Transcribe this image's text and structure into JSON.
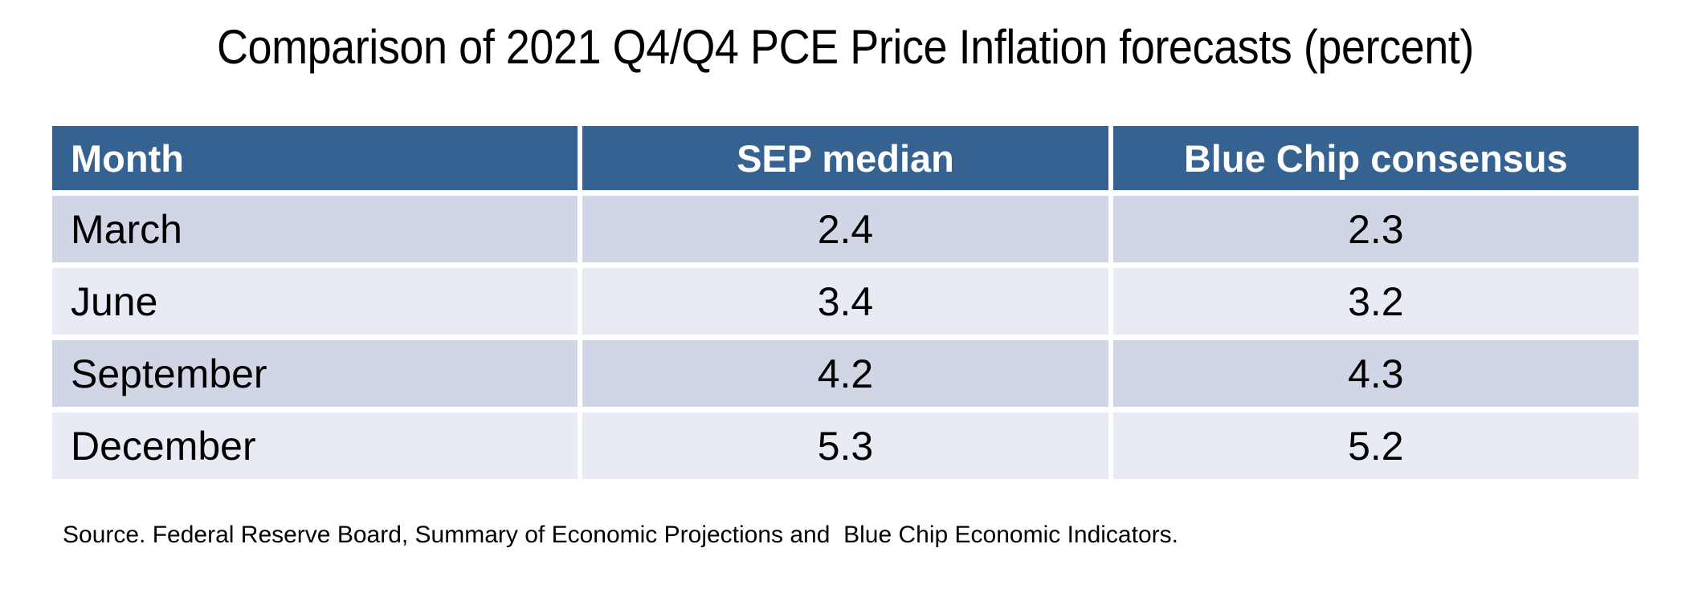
{
  "title": "Comparison of 2021 Q4/Q4 PCE Price Inflation forecasts (percent)",
  "table": {
    "header": {
      "month": "Month",
      "sep": "SEP median",
      "bluechip": "Blue Chip consensus"
    },
    "rows": [
      {
        "month": "March",
        "sep": "2.4",
        "bluechip": "2.3"
      },
      {
        "month": "June",
        "sep": "3.4",
        "bluechip": "3.2"
      },
      {
        "month": "September",
        "sep": "4.2",
        "bluechip": "4.3"
      },
      {
        "month": "December",
        "sep": "5.3",
        "bluechip": "5.2"
      }
    ]
  },
  "source": "Source. Federal Reserve Board, Summary of Economic Projections and  Blue Chip Economic Indicators.",
  "colors": {
    "header_bg": "#366291",
    "header_text": "#ffffff",
    "row_band_dark": "#d0d6e6",
    "row_band_light": "#e8ebf3",
    "body_text": "#000000",
    "background": "#ffffff"
  },
  "chart_data": {
    "type": "table",
    "title": "Comparison of 2021 Q4/Q4 PCE Price Inflation forecasts (percent)",
    "columns": [
      "Month",
      "SEP median",
      "Blue Chip consensus"
    ],
    "categories": [
      "March",
      "June",
      "September",
      "December"
    ],
    "series": [
      {
        "name": "SEP median",
        "values": [
          2.4,
          3.4,
          4.2,
          5.3
        ]
      },
      {
        "name": "Blue Chip consensus",
        "values": [
          2.3,
          3.2,
          4.3,
          5.2
        ]
      }
    ],
    "source_note": "Source. Federal Reserve Board, Summary of Economic Projections and  Blue Chip Economic Indicators.",
    "layout": "header row dark blue with white bold text; data rows banded dark/light lavender with white gutters; 3 equal-width columns; month column left-aligned, value columns centered"
  }
}
